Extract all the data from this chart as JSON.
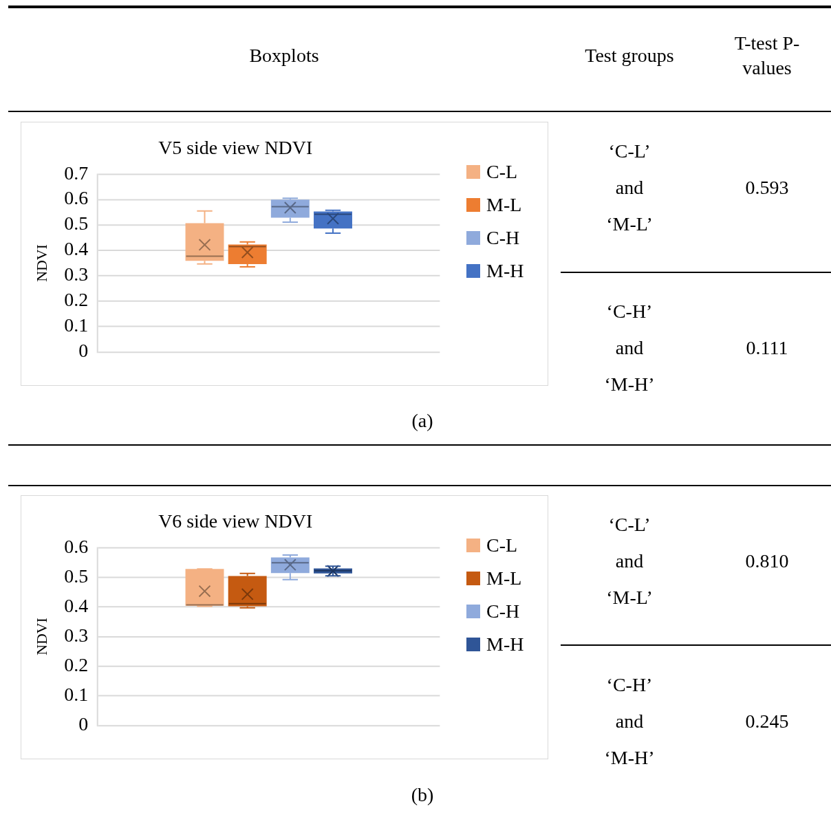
{
  "chart_data": [
    {
      "type": "other",
      "annotations": [
        "Boxplots",
        "Test groups",
        "T-test P-values"
      ]
    },
    {
      "type": "box",
      "title": "V5 side view NDVI",
      "ylabel": "NDVI",
      "categories": [
        null
      ],
      "ylim": [
        0,
        0.7
      ],
      "yticks": [
        0,
        0.1,
        0.2,
        0.3,
        0.4,
        0.5,
        0.6,
        0.7
      ],
      "grid": "y",
      "legend": "right",
      "annotations": [
        "(a)"
      ],
      "series": [
        {
          "name": "C-L",
          "color": "#f4b183",
          "boxes": [
            {
              "low": 0.347,
              "q1": 0.359,
              "median": 0.377,
              "q3": 0.507,
              "high": 0.555,
              "mean": 0.422
            }
          ]
        },
        {
          "name": "M-L",
          "color": "#ed7d31",
          "boxes": [
            {
              "low": 0.335,
              "q1": 0.346,
              "median": 0.415,
              "q3": 0.423,
              "high": 0.433,
              "mean": 0.392
            }
          ]
        },
        {
          "name": "C-H",
          "color": "#8faadc",
          "boxes": [
            {
              "low": 0.511,
              "q1": 0.529,
              "median": 0.572,
              "q3": 0.6,
              "high": 0.605,
              "mean": 0.568
            }
          ]
        },
        {
          "name": "M-H",
          "color": "#4472c4",
          "boxes": [
            {
              "low": 0.468,
              "q1": 0.486,
              "median": 0.542,
              "q3": 0.553,
              "high": 0.558,
              "mean": 0.525
            }
          ]
        }
      ]
    },
    {
      "type": "other",
      "annotations": [
        "‘C-L’",
        "and",
        "‘M-L’",
        "0.593",
        "‘C-H’",
        "and",
        "‘M-H’",
        "0.111"
      ]
    },
    {
      "type": "box",
      "title": "V6 side view NDVI",
      "ylabel": "NDVI",
      "categories": [
        null
      ],
      "ylim": [
        0,
        0.6
      ],
      "yticks": [
        0,
        0.1,
        0.2,
        0.3,
        0.4,
        0.5,
        0.6
      ],
      "grid": "y",
      "legend": "right",
      "annotations": [
        "(b)"
      ],
      "series": [
        {
          "name": "C-L",
          "color": "#f4b183",
          "boxes": [
            {
              "low": 0.402,
              "q1": 0.404,
              "median": 0.407,
              "q3": 0.528,
              "high": 0.528,
              "mean": 0.453
            }
          ]
        },
        {
          "name": "M-L",
          "color": "#c55a11",
          "boxes": [
            {
              "low": 0.397,
              "q1": 0.402,
              "median": 0.411,
              "q3": 0.504,
              "high": 0.513,
              "mean": 0.443
            }
          ]
        },
        {
          "name": "C-H",
          "color": "#8faadc",
          "boxes": [
            {
              "low": 0.492,
              "q1": 0.514,
              "median": 0.549,
              "q3": 0.567,
              "high": 0.575,
              "mean": 0.542
            }
          ]
        },
        {
          "name": "M-H",
          "color": "#2f5597",
          "boxes": [
            {
              "low": 0.505,
              "q1": 0.513,
              "median": 0.522,
              "q3": 0.53,
              "high": 0.537,
              "mean": 0.521
            }
          ]
        }
      ]
    },
    {
      "type": "other",
      "annotations": [
        "‘C-L’",
        "and",
        "‘M-L’",
        "0.810",
        "‘C-H’",
        "and",
        "‘M-H’",
        "0.245"
      ]
    }
  ]
}
